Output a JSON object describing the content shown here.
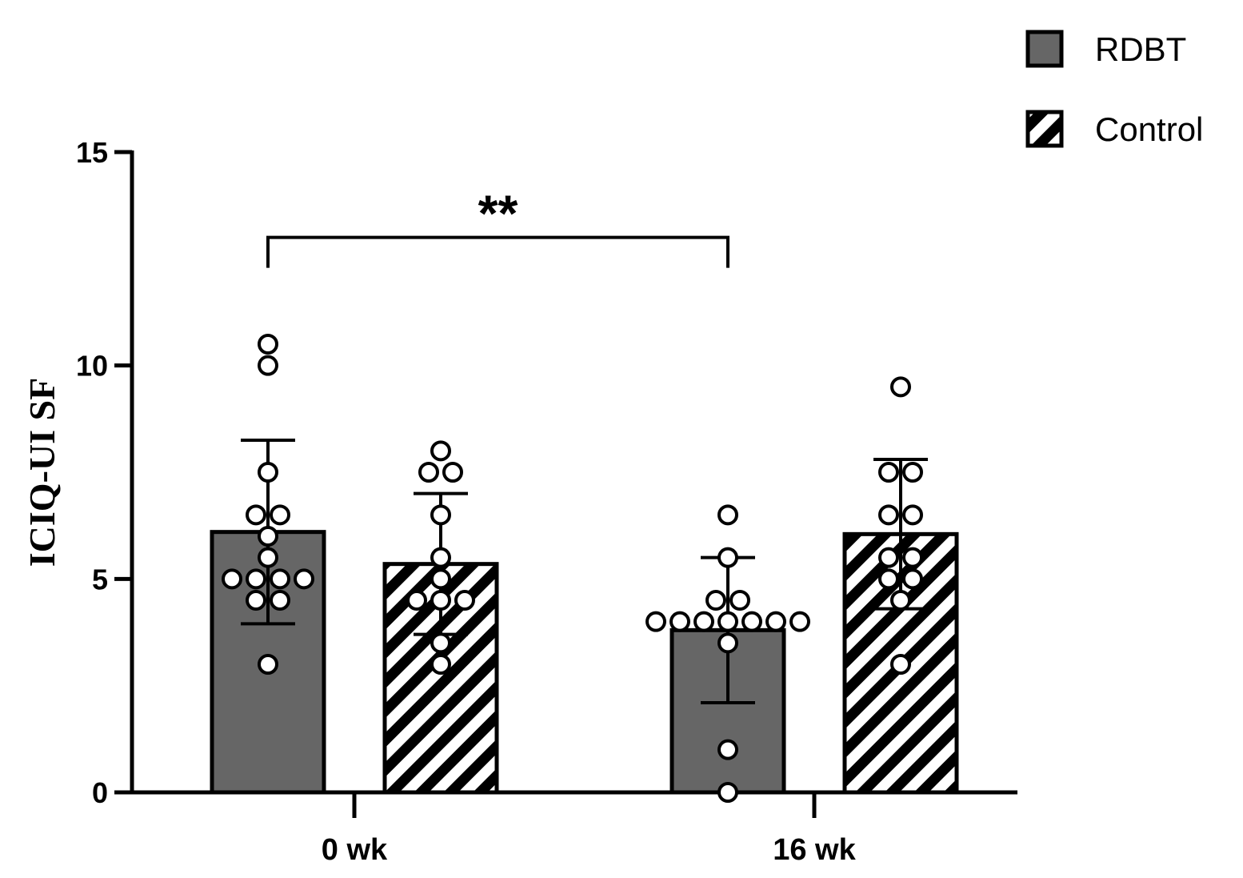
{
  "chart_data": {
    "type": "bar",
    "ylabel": "ICIQ-UI SF",
    "xlabel": "",
    "ylim": [
      0,
      15
    ],
    "yticks": [
      0,
      5,
      10,
      15
    ],
    "categories": [
      "0 wk",
      "16 wk"
    ],
    "legend_position": "top-right",
    "series": [
      {
        "name": "RDBT",
        "fill": "solid",
        "color": "#666666",
        "values": [
          6.1,
          3.8
        ],
        "error": [
          2.15,
          1.7
        ],
        "points": [
          [
            10.5,
            10.0,
            7.5,
            6.5,
            6.5,
            6.0,
            5.5,
            5.0,
            5.0,
            5.0,
            5.0,
            4.5,
            4.5,
            3.0
          ],
          [
            6.5,
            5.5,
            4.5,
            4.5,
            4.0,
            4.0,
            4.0,
            4.0,
            4.0,
            4.0,
            4.0,
            3.5,
            1.0,
            0.0
          ]
        ]
      },
      {
        "name": "Control",
        "fill": "hatched",
        "color": "#ffffff",
        "values": [
          5.35,
          6.05
        ],
        "error": [
          1.65,
          1.75
        ],
        "points": [
          [
            8.0,
            7.5,
            7.5,
            6.5,
            5.5,
            5.0,
            4.5,
            4.5,
            4.5,
            3.5,
            3.0
          ],
          [
            9.5,
            7.5,
            7.5,
            6.5,
            6.5,
            5.5,
            5.5,
            5.0,
            5.0,
            4.5,
            3.0
          ]
        ]
      }
    ],
    "annotations": [
      {
        "text": "**",
        "from": {
          "category": 0,
          "series": 0
        },
        "to": {
          "category": 1,
          "series": 0
        },
        "y": 13.0
      }
    ]
  }
}
